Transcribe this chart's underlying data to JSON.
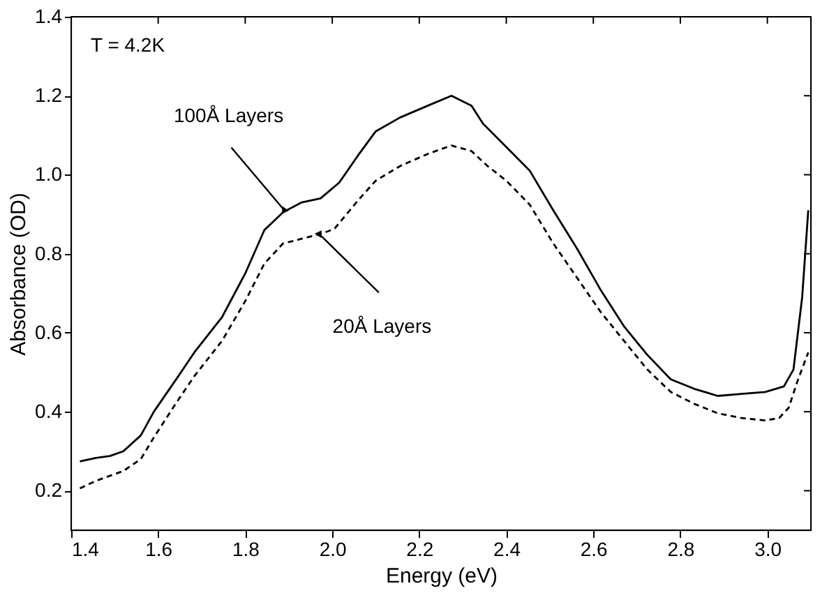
{
  "chart_data": {
    "type": "line",
    "xlabel": "Energy (eV)",
    "ylabel": "Absorbance (OD)",
    "xlim": [
      1.4,
      3.1
    ],
    "xticks": [
      1.4,
      1.6,
      1.8,
      {
        "value": 2,
        "label": "2.0"
      },
      2.2,
      2.4,
      2.6,
      2.8,
      {
        "value": 3,
        "label": "3.0"
      }
    ],
    "ylim": [
      0.1,
      1.4
    ],
    "yticks": [
      0.2,
      0.4,
      0.6,
      0.8,
      {
        "value": 1,
        "label": "1.0"
      },
      1.2,
      1.4
    ],
    "grid": false,
    "marker": "none",
    "annotations": [
      "T = 4.2K",
      {
        "text": "100Å Layers",
        "x": 1.89,
        "y": 0.91
      },
      {
        "text": "20Å Layers",
        "x": 1.97,
        "y": 0.85
      }
    ],
    "series": [
      {
        "color": "#000000",
        "line_style": "solid",
        "x": [
          1.42,
          1.457,
          1.489,
          1.52,
          1.56,
          1.59,
          1.64,
          1.683,
          1.747,
          1.8,
          1.844,
          1.887,
          1.93,
          1.973,
          2.016,
          2.06,
          2.1,
          2.156,
          2.22,
          2.274,
          2.32,
          2.346,
          2.4,
          2.454,
          2.508,
          2.562,
          2.616,
          2.67,
          2.724,
          2.778,
          2.832,
          2.886,
          2.94,
          2.995,
          3.038,
          3.06,
          3.08,
          3.094
        ],
        "values": [
          0.274,
          0.283,
          0.288,
          0.3,
          0.34,
          0.4,
          0.48,
          0.55,
          0.64,
          0.75,
          0.86,
          0.905,
          0.93,
          0.94,
          0.98,
          1.05,
          1.11,
          1.145,
          1.175,
          1.2,
          1.175,
          1.13,
          1.07,
          1.01,
          0.91,
          0.814,
          0.71,
          0.617,
          0.544,
          0.482,
          0.458,
          0.44,
          0.445,
          0.45,
          0.464,
          0.507,
          0.69,
          0.91
        ]
      },
      {
        "color": "#000000",
        "line_style": "dashed",
        "x": [
          1.42,
          1.457,
          1.52,
          1.56,
          1.59,
          1.64,
          1.683,
          1.747,
          1.8,
          1.844,
          1.887,
          1.93,
          1.973,
          2.005,
          2.06,
          2.1,
          2.156,
          2.22,
          2.274,
          2.32,
          2.357,
          2.4,
          2.454,
          2.508,
          2.562,
          2.616,
          2.67,
          2.724,
          2.778,
          2.832,
          2.886,
          2.94,
          2.995,
          3.027,
          3.049,
          3.07,
          3.094
        ],
        "values": [
          0.206,
          0.225,
          0.25,
          0.28,
          0.335,
          0.42,
          0.49,
          0.58,
          0.68,
          0.775,
          0.826,
          0.838,
          0.85,
          0.863,
          0.936,
          0.985,
          1.022,
          1.053,
          1.074,
          1.06,
          1.022,
          0.985,
          0.924,
          0.826,
          0.74,
          0.654,
          0.58,
          0.507,
          0.45,
          0.42,
          0.396,
          0.384,
          0.378,
          0.384,
          0.41,
          0.48,
          0.55
        ]
      }
    ]
  }
}
